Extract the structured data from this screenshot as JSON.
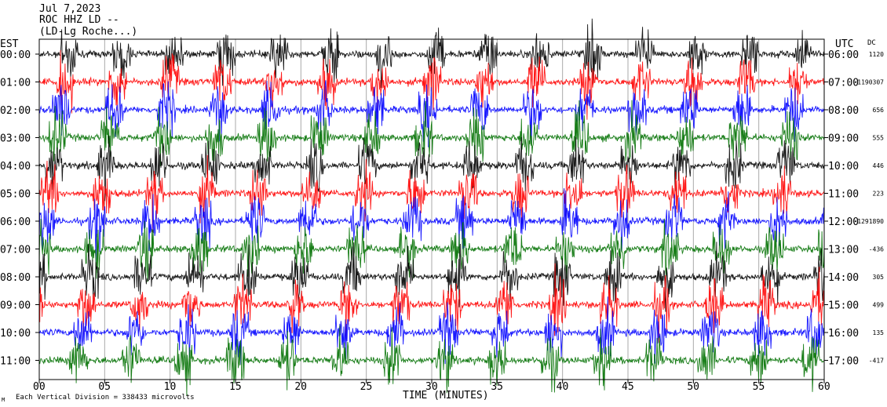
{
  "header": {
    "date": "Jul 7,2023",
    "station": "ROC HHZ LD --",
    "location": "(LD-Lg Roche...)"
  },
  "axes": {
    "left_label": "EST",
    "right_label": "UTC",
    "dc_label": "DC",
    "xlabel": "TIME (MINUTES)",
    "footer": "Each Vertical Division = 338433 microvolts",
    "corner_mark": "M"
  },
  "colors": {
    "black": "#000000",
    "red": "#ff0000",
    "blue": "#0000ff",
    "green": "#007000",
    "grid": "#aaaaaa"
  },
  "chart_data": {
    "type": "line",
    "title": "Jul 7,2023 ROC HHZ LD --",
    "xlabel": "TIME (MINUTES)",
    "xlim": [
      0,
      60
    ],
    "xticks": [
      "00",
      "05",
      "10",
      "15",
      "20",
      "25",
      "30",
      "35",
      "40",
      "45",
      "50",
      "55",
      "60"
    ],
    "rows": [
      {
        "est": "00:00",
        "utc": "06:00",
        "dc": "1120",
        "color": "black"
      },
      {
        "est": "01:00",
        "utc": "07:00",
        "dc": "-1190307",
        "color": "red"
      },
      {
        "est": "02:00",
        "utc": "08:00",
        "dc": "656",
        "color": "blue"
      },
      {
        "est": "03:00",
        "utc": "09:00",
        "dc": "555",
        "color": "green"
      },
      {
        "est": "04:00",
        "utc": "10:00",
        "dc": "446",
        "color": "black"
      },
      {
        "est": "05:00",
        "utc": "11:00",
        "dc": "223",
        "color": "red"
      },
      {
        "est": "06:00",
        "utc": "12:00",
        "dc": "-1291890",
        "color": "blue"
      },
      {
        "est": "07:00",
        "utc": "13:00",
        "dc": "-436",
        "color": "green"
      },
      {
        "est": "08:00",
        "utc": "14:00",
        "dc": "305",
        "color": "black"
      },
      {
        "est": "09:00",
        "utc": "15:00",
        "dc": "499",
        "color": "red"
      },
      {
        "est": "10:00",
        "utc": "16:00",
        "dc": "135",
        "color": "blue"
      },
      {
        "est": "11:00",
        "utc": "17:00",
        "dc": "-417",
        "color": "green"
      }
    ]
  }
}
